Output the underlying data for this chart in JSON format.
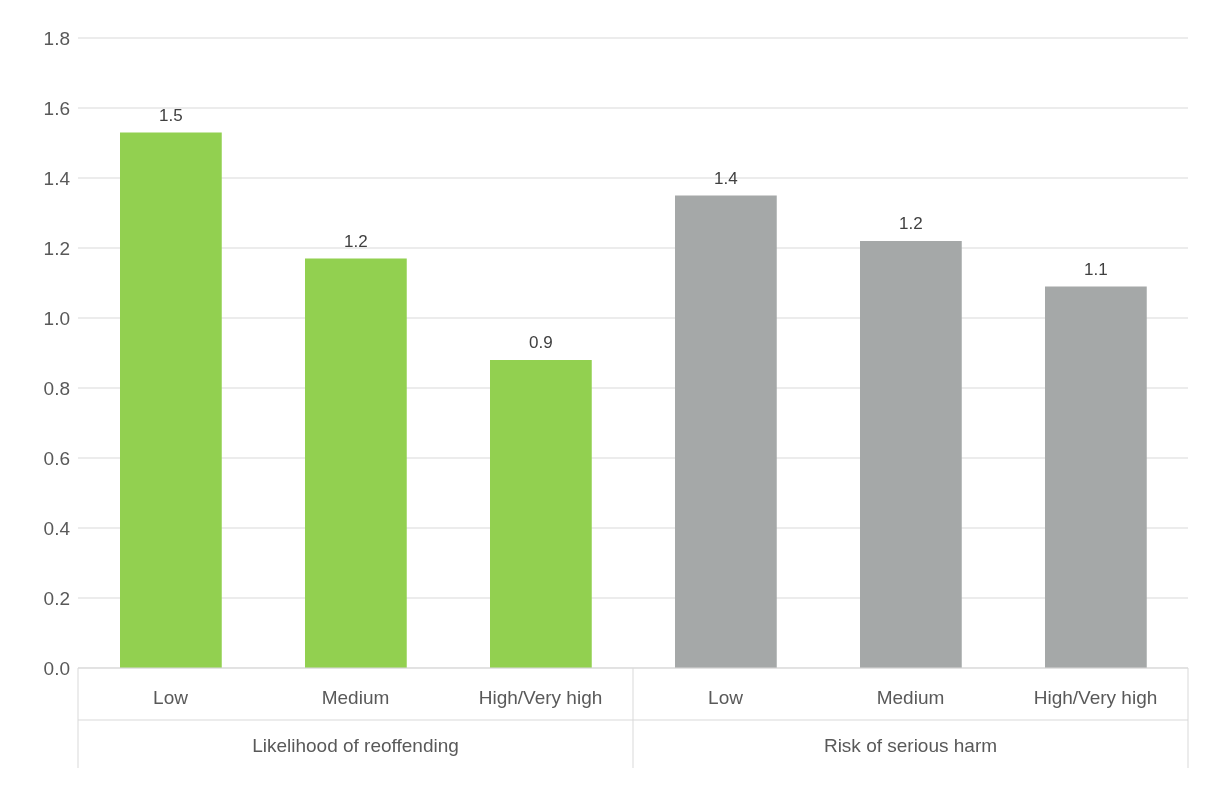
{
  "chart_data": {
    "type": "bar",
    "categories": [
      "Low",
      "Medium",
      "High/Very high",
      "Low",
      "Medium",
      "High/Very high"
    ],
    "values": [
      1.53,
      1.17,
      0.88,
      1.35,
      1.22,
      1.09
    ],
    "colors": [
      "#92d050",
      "#92d050",
      "#92d050",
      "#a5a8a8",
      "#a5a8a8",
      "#a5a8a8"
    ],
    "value_labels": [
      "1.5",
      "1.2",
      "0.9",
      "1.4",
      "1.2",
      "1.1"
    ],
    "annotations": [
      "Likelihood of reoffending",
      "Risk of serious harm"
    ],
    "ylim": [
      0,
      1.8
    ],
    "yticks": [
      {
        "value": 0,
        "label": "0.0"
      },
      0.2,
      0.4,
      0.6,
      0.8,
      {
        "value": 1,
        "label": "1.0"
      },
      1.2,
      1.4,
      1.6,
      1.8
    ],
    "grid": "y"
  }
}
